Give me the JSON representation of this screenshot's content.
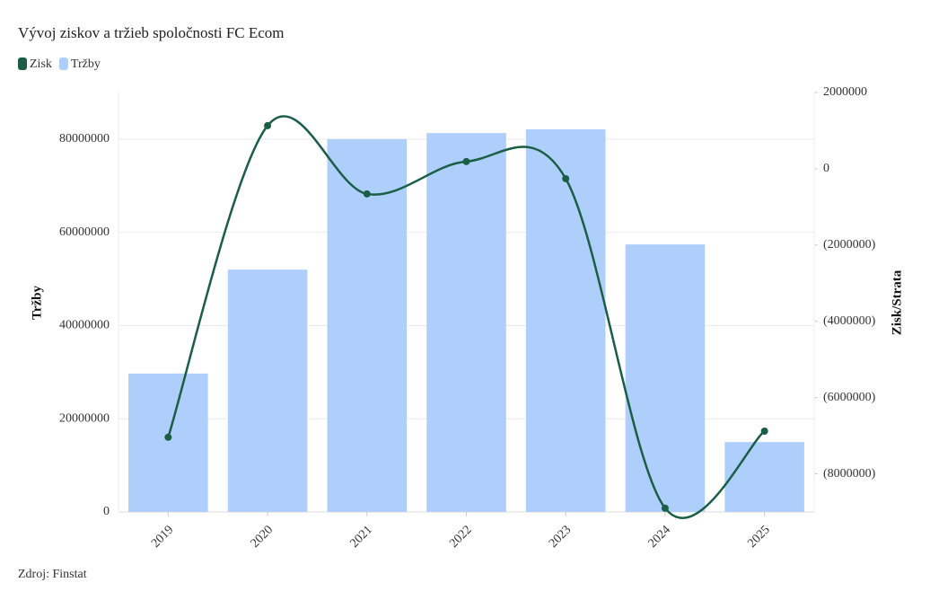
{
  "chart_data": {
    "type": "bar-line",
    "title": "Vývoj ziskov a tržieb spoločnosti FC Ecom",
    "source": "Zdroj: Finstat",
    "y_label": "Tržby",
    "y2_label": "Zisk/Strata",
    "categories": [
      "2019",
      "2020",
      "2021",
      "2022",
      "2023",
      "2024",
      "2025"
    ],
    "series": [
      {
        "name": "Zisk",
        "type": "line",
        "axis": "y2",
        "color": "#1b5e46",
        "values": [
          -7040000,
          1130000,
          -660000,
          190000,
          -260000,
          -8900000,
          -6880000
        ]
      },
      {
        "name": "Tržby",
        "type": "bar",
        "axis": "y",
        "color": "#aecffc",
        "values": [
          29700000,
          52000000,
          80000000,
          81300000,
          82100000,
          57400000,
          15000000
        ]
      }
    ],
    "ylim": [
      0,
      90000000
    ],
    "yticks": [
      0,
      20000000,
      40000000,
      60000000,
      80000000
    ],
    "y2lim": [
      -9000000,
      2000000
    ],
    "y2ticks": [
      {
        "value": -8000000,
        "label": "(8000000)"
      },
      {
        "value": -6000000,
        "label": "(6000000)"
      },
      {
        "value": -4000000,
        "label": "(4000000)"
      },
      {
        "value": -2000000,
        "label": "(2000000)"
      },
      0,
      2000000
    ],
    "grid": true,
    "legend": "top-left"
  }
}
